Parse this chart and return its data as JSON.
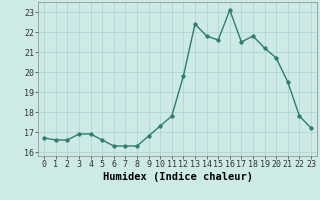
{
  "x": [
    0,
    1,
    2,
    3,
    4,
    5,
    6,
    7,
    8,
    9,
    10,
    11,
    12,
    13,
    14,
    15,
    16,
    17,
    18,
    19,
    20,
    21,
    22,
    23
  ],
  "y": [
    16.7,
    16.6,
    16.6,
    16.9,
    16.9,
    16.6,
    16.3,
    16.3,
    16.3,
    16.8,
    17.3,
    17.8,
    19.8,
    22.4,
    21.8,
    21.6,
    23.1,
    21.5,
    21.8,
    21.2,
    20.7,
    19.5,
    17.8,
    17.2
  ],
  "xlabel": "Humidex (Indice chaleur)",
  "ylim": [
    15.8,
    23.5
  ],
  "xlim": [
    -0.5,
    23.5
  ],
  "yticks": [
    16,
    17,
    18,
    19,
    20,
    21,
    22,
    23
  ],
  "xticks": [
    0,
    1,
    2,
    3,
    4,
    5,
    6,
    7,
    8,
    9,
    10,
    11,
    12,
    13,
    14,
    15,
    16,
    17,
    18,
    19,
    20,
    21,
    22,
    23
  ],
  "line_color": "#2e7d6e",
  "marker_color": "#2e7d6e",
  "bg_color": "#ceeae7",
  "grid_color": "#b0d8d4",
  "spine_color": "#888888",
  "xlabel_fontsize": 7.5,
  "tick_fontsize": 6,
  "line_width": 1.0,
  "marker_size": 2.5
}
